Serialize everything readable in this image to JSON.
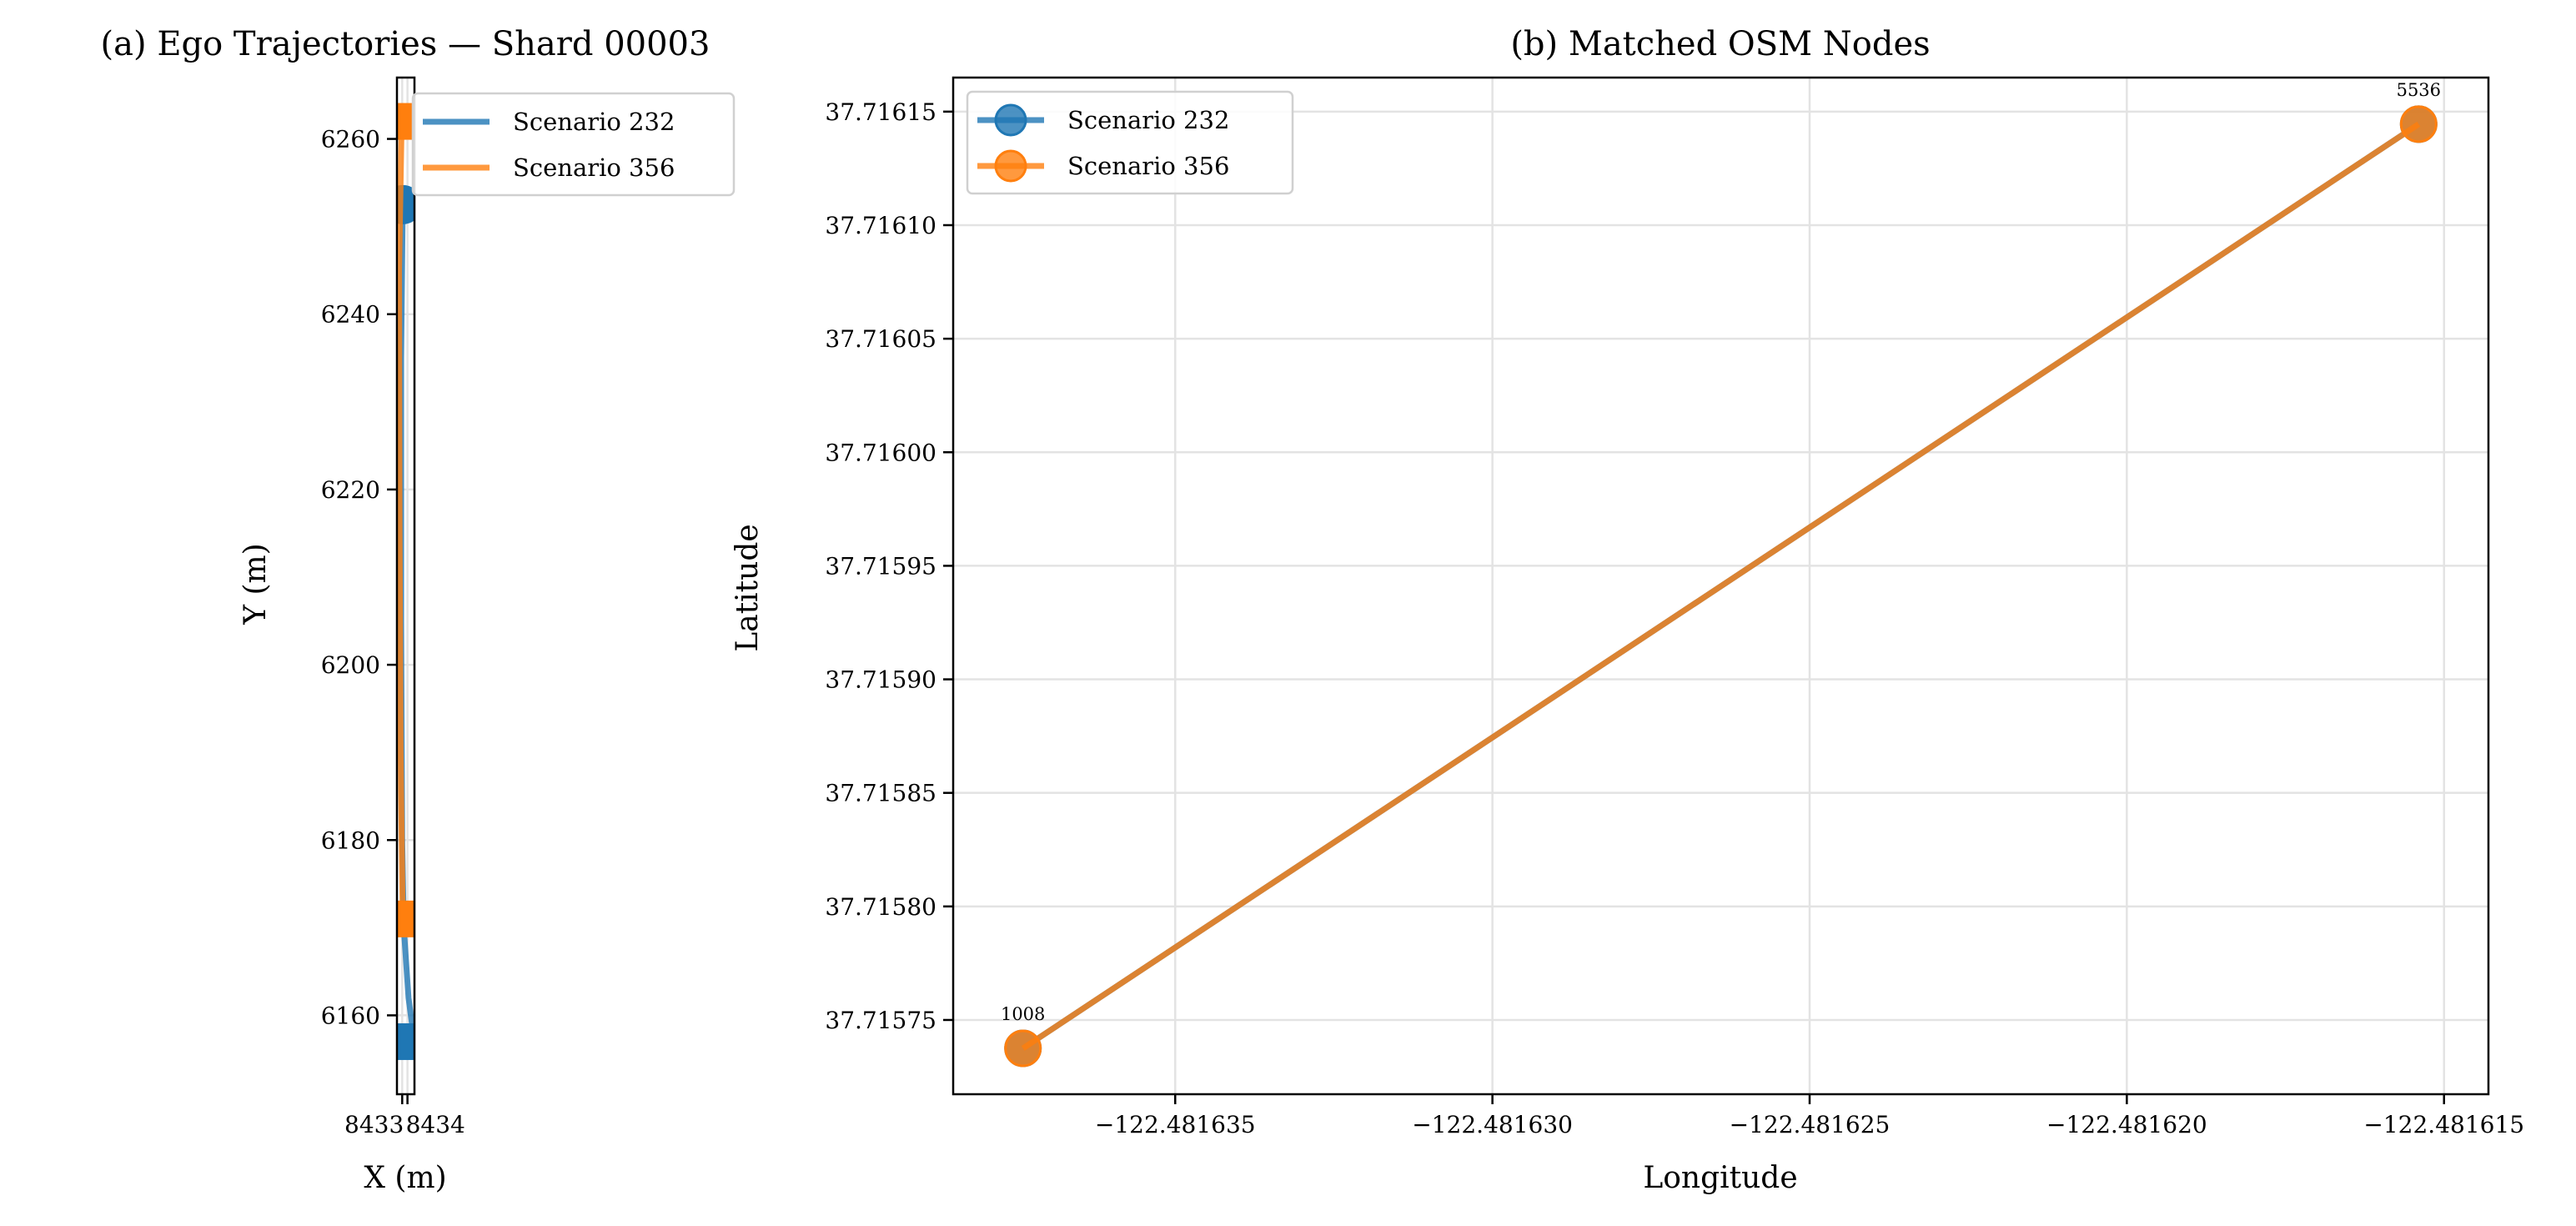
{
  "chart_data": [
    {
      "type": "line",
      "title": "(a) Ego Trajectories — Shard 00003",
      "xlabel": "X (m)",
      "ylabel": "Y (m)",
      "xlim": [
        8432.0,
        8435.33
      ],
      "ylim": [
        6151,
        6267
      ],
      "xticks": [
        8433,
        8434
      ],
      "xtick_labels": [
        "8433",
        "8434"
      ],
      "yticks": [
        6160,
        6180,
        6200,
        6220,
        6240,
        6260
      ],
      "ytick_labels": [
        "6160",
        "6180",
        "6200",
        "6220",
        "6240",
        "6260"
      ],
      "grid": true,
      "legend_placement": "upper-right-outside",
      "series": [
        {
          "name": "Scenario 232",
          "color": "#1f77b4",
          "points": [
            [
              8433.1,
              6252.5
            ],
            [
              8432.8,
              6235
            ],
            [
              8432.8,
              6205
            ],
            [
              8433.0,
              6180
            ],
            [
              8433.3,
              6170
            ],
            [
              8434.2,
              6162
            ],
            [
              8435.3,
              6157
            ]
          ],
          "start_marker": "circle",
          "end_marker": "square"
        },
        {
          "name": "Scenario 356",
          "color": "#ff7f0e",
          "points": [
            [
              8432.9,
              6262
            ],
            [
              8432.4,
              6245
            ],
            [
              8432.5,
              6215
            ],
            [
              8432.7,
              6190
            ],
            [
              8433.1,
              6171
            ]
          ],
          "start_marker": "square",
          "end_marker": "square"
        }
      ]
    },
    {
      "type": "line",
      "title": "(b) Matched OSM Nodes",
      "xlabel": "Longitude",
      "ylabel": "Latitude",
      "xlim": [
        -122.4816385,
        -122.4816143
      ],
      "ylim": [
        37.7157173,
        37.716165
      ],
      "xticks": [
        -122.481635,
        -122.48163,
        -122.481625,
        -122.48162,
        -122.481615
      ],
      "xtick_labels": [
        "−122.481635",
        "−122.481630",
        "−122.481625",
        "−122.481620",
        "−122.481615"
      ],
      "yticks": [
        37.71575,
        37.7158,
        37.71585,
        37.7159,
        37.71595,
        37.716,
        37.71605,
        37.7161,
        37.71615
      ],
      "ytick_labels": [
        "37.71575",
        "37.71580",
        "37.71585",
        "37.71590",
        "37.71595",
        "37.71600",
        "37.71605",
        "37.71610",
        "37.71615"
      ],
      "grid": true,
      "legend_placement": "upper-left",
      "series": [
        {
          "name": "Scenario 232",
          "color": "#1f77b4",
          "points": [
            [
              -122.4816374,
              37.7157375
            ],
            [
              -122.4816154,
              37.7161445
            ]
          ]
        },
        {
          "name": "Scenario 356",
          "color": "#ff7f0e",
          "points": [
            [
              -122.4816374,
              37.7157375
            ],
            [
              -122.4816154,
              37.7161445
            ]
          ]
        }
      ],
      "annotations": [
        {
          "text": "1008",
          "x": -122.4816374,
          "y": 37.7157375
        },
        {
          "text": "5536",
          "x": -122.4816154,
          "y": 37.7161445
        }
      ]
    }
  ]
}
